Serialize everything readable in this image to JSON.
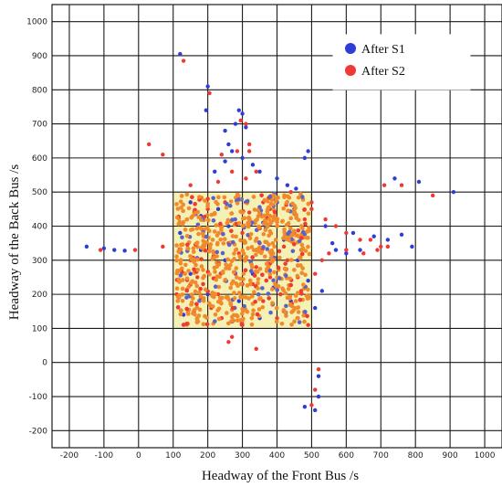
{
  "chart_data": {
    "type": "scatter",
    "title": "",
    "xlabel": "Headway of the Front Bus /s",
    "ylabel": "Headway of the Back Bus /s",
    "xlim": [
      -250,
      1050
    ],
    "ylim": [
      -250,
      1050
    ],
    "x_ticks": [
      "-200",
      "-100",
      "0",
      "100",
      "200",
      "300",
      "400",
      "500",
      "600",
      "700",
      "800",
      "900",
      "1000"
    ],
    "y_ticks": [
      "-200",
      "-100",
      "0",
      "100",
      "200",
      "300",
      "400",
      "500",
      "600",
      "700",
      "800",
      "900",
      "1000"
    ],
    "grid": true,
    "legend_placement": "top-right",
    "highlight_region": {
      "x": [
        100,
        500
      ],
      "y": [
        100,
        500
      ],
      "color": "#f5f0b4"
    },
    "series": [
      {
        "name": "After S1",
        "color": "#2f3cd6",
        "points": [
          [
            120,
            905
          ],
          [
            200,
            810
          ],
          [
            195,
            740
          ],
          [
            290,
            740
          ],
          [
            300,
            730
          ],
          [
            280,
            700
          ],
          [
            250,
            680
          ],
          [
            310,
            690
          ],
          [
            260,
            640
          ],
          [
            270,
            620
          ],
          [
            300,
            600
          ],
          [
            220,
            560
          ],
          [
            250,
            590
          ],
          [
            330,
            580
          ],
          [
            350,
            560
          ],
          [
            400,
            540
          ],
          [
            480,
            600
          ],
          [
            490,
            620
          ],
          [
            430,
            520
          ],
          [
            455,
            510
          ],
          [
            -150,
            340
          ],
          [
            -100,
            335
          ],
          [
            -70,
            330
          ],
          [
            -40,
            328
          ],
          [
            150,
            470
          ],
          [
            120,
            380
          ],
          [
            180,
            330
          ],
          [
            250,
            300
          ],
          [
            330,
            260
          ],
          [
            390,
            220
          ],
          [
            440,
            180
          ],
          [
            480,
            140
          ],
          [
            510,
            160
          ],
          [
            530,
            210
          ],
          [
            560,
            350
          ],
          [
            600,
            320
          ],
          [
            640,
            330
          ],
          [
            680,
            370
          ],
          [
            720,
            360
          ],
          [
            740,
            540
          ],
          [
            760,
            375
          ],
          [
            790,
            340
          ],
          [
            810,
            530
          ],
          [
            910,
            500
          ],
          [
            520,
            -40
          ],
          [
            510,
            -140
          ],
          [
            480,
            -130
          ],
          [
            520,
            -100
          ],
          [
            270,
            120
          ],
          [
            150,
            260
          ],
          [
            230,
            450
          ],
          [
            310,
            470
          ],
          [
            360,
            410
          ],
          [
            420,
            360
          ],
          [
            460,
            300
          ],
          [
            200,
            200
          ],
          [
            290,
            180
          ],
          [
            350,
            130
          ],
          [
            400,
            470
          ],
          [
            260,
            400
          ],
          [
            180,
            430
          ],
          [
            340,
            330
          ],
          [
            450,
            450
          ],
          [
            490,
            240
          ],
          [
            130,
            140
          ],
          [
            570,
            330
          ],
          [
            620,
            380
          ],
          [
            540,
            400
          ]
        ]
      },
      {
        "name": "After S2",
        "color": "#ee3a32",
        "points": [
          [
            130,
            885
          ],
          [
            205,
            790
          ],
          [
            295,
            710
          ],
          [
            310,
            700
          ],
          [
            285,
            620
          ],
          [
            240,
            610
          ],
          [
            320,
            640
          ],
          [
            270,
            560
          ],
          [
            230,
            530
          ],
          [
            310,
            540
          ],
          [
            340,
            560
          ],
          [
            320,
            620
          ],
          [
            360,
            470
          ],
          [
            440,
            500
          ],
          [
            500,
            470
          ],
          [
            30,
            640
          ],
          [
            70,
            610
          ],
          [
            500,
            450
          ],
          [
            540,
            420
          ],
          [
            570,
            400
          ],
          [
            600,
            380
          ],
          [
            640,
            360
          ],
          [
            670,
            360
          ],
          [
            700,
            340
          ],
          [
            710,
            520
          ],
          [
            760,
            520
          ],
          [
            850,
            490
          ],
          [
            -110,
            330
          ],
          [
            -10,
            330
          ],
          [
            70,
            340
          ],
          [
            150,
            520
          ],
          [
            200,
            480
          ],
          [
            260,
            60
          ],
          [
            270,
            75
          ],
          [
            340,
            40
          ],
          [
            500,
            -125
          ],
          [
            510,
            -80
          ],
          [
            520,
            -20
          ],
          [
            490,
            110
          ],
          [
            460,
            130
          ],
          [
            110,
            200
          ],
          [
            160,
            150
          ],
          [
            240,
            130
          ],
          [
            300,
            110
          ],
          [
            400,
            130
          ],
          [
            470,
            210
          ],
          [
            510,
            260
          ],
          [
            530,
            300
          ],
          [
            550,
            320
          ],
          [
            600,
            330
          ],
          [
            650,
            320
          ],
          [
            690,
            330
          ],
          [
            720,
            340
          ],
          [
            120,
            330
          ],
          [
            140,
            420
          ],
          [
            190,
            370
          ],
          [
            220,
            310
          ],
          [
            280,
            260
          ],
          [
            330,
            230
          ],
          [
            380,
            290
          ],
          [
            420,
            340
          ],
          [
            450,
            380
          ],
          [
            480,
            420
          ],
          [
            170,
            250
          ],
          [
            230,
            200
          ],
          [
            260,
            350
          ],
          [
            300,
            380
          ],
          [
            350,
            350
          ],
          [
            400,
            400
          ],
          [
            430,
            300
          ],
          [
            460,
            250
          ],
          [
            200,
            450
          ],
          [
            250,
            470
          ],
          [
            320,
            440
          ],
          [
            360,
            180
          ],
          [
            290,
            320
          ],
          [
            380,
            250
          ],
          [
            210,
            160
          ],
          [
            150,
            300
          ],
          [
            340,
            280
          ],
          [
            410,
            200
          ],
          [
            470,
            330
          ],
          [
            180,
            190
          ],
          [
            300,
            230
          ],
          [
            250,
            240
          ],
          [
            380,
            450
          ]
        ]
      }
    ]
  }
}
